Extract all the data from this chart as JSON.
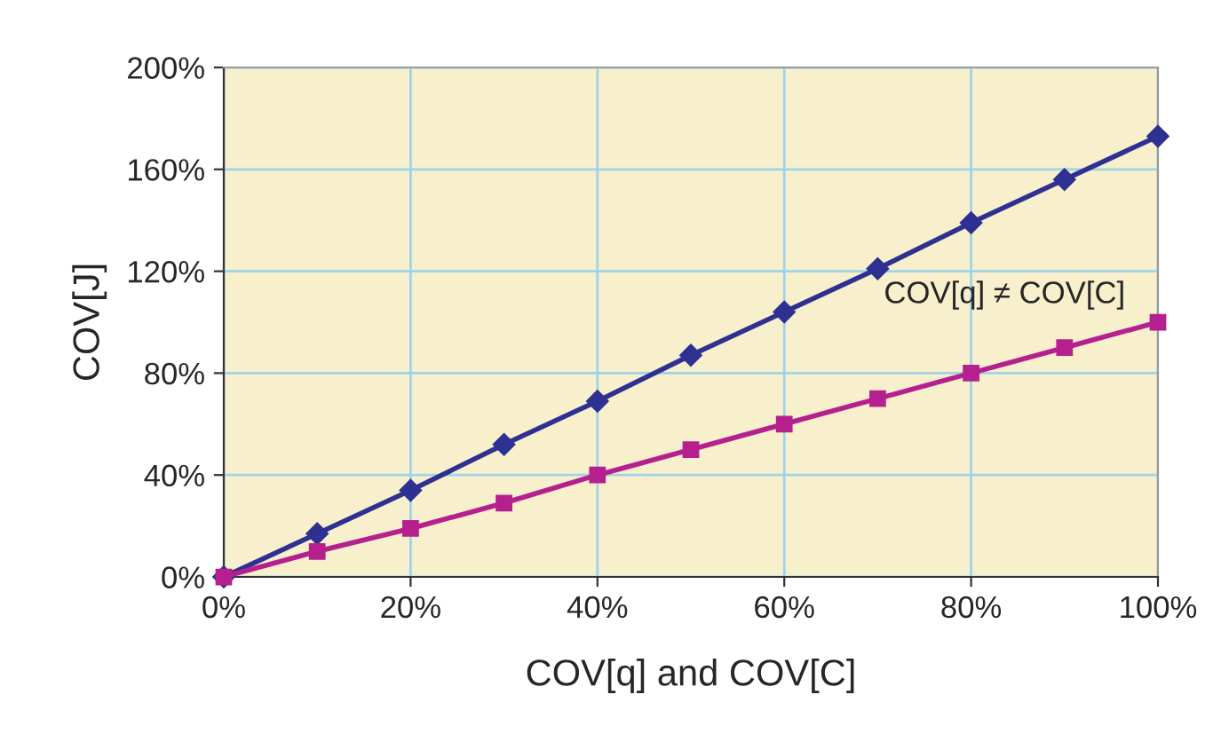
{
  "chart_data": {
    "type": "line",
    "xlabel": "COV[q] and COV[C]",
    "ylabel": "COV[J]",
    "x": [
      0,
      10,
      20,
      30,
      40,
      50,
      60,
      70,
      80,
      90,
      100
    ],
    "series": [
      {
        "color": "#2e3192",
        "marker": "diamond",
        "values": [
          0,
          17,
          34,
          52,
          69,
          87,
          104,
          121,
          139,
          156,
          173
        ]
      },
      {
        "color": "#b5208e",
        "marker": "square",
        "values": [
          0,
          10,
          19,
          29,
          40,
          50,
          60,
          70,
          80,
          90,
          100
        ]
      }
    ],
    "annotations": [
      "COV[q] ≠ COV[C]"
    ],
    "xlim": [
      0,
      100
    ],
    "xticks": [
      {
        "value": 0,
        "label": "0%"
      },
      {
        "value": 20,
        "label": "20%"
      },
      {
        "value": 40,
        "label": "40%"
      },
      {
        "value": 60,
        "label": "60%"
      },
      {
        "value": 80,
        "label": "80%"
      },
      {
        "value": 100,
        "label": "100%"
      }
    ],
    "ylim": [
      0,
      200
    ],
    "yticks": [
      {
        "value": 0,
        "label": "0%"
      },
      {
        "value": 40,
        "label": "40%"
      },
      {
        "value": 80,
        "label": "80%"
      },
      {
        "value": 120,
        "label": "120%"
      },
      {
        "value": 160,
        "label": "160%"
      },
      {
        "value": 200,
        "label": "200%"
      }
    ],
    "grid": true,
    "legend": false,
    "line_style": "solid"
  }
}
